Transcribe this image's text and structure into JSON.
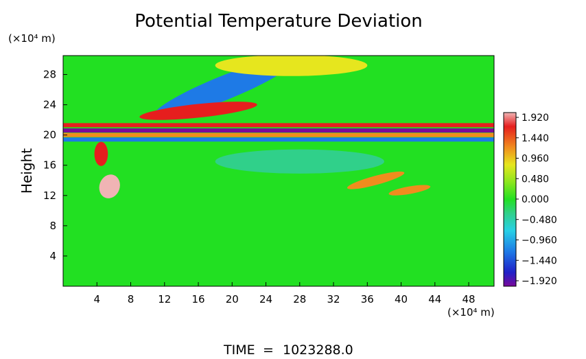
{
  "chart_data": {
    "type": "heatmap",
    "title": "Potential Temperature Deviation",
    "ylabel": "Height",
    "y_unit": "(×10⁴ m)",
    "x_unit": "(×10⁴ m)",
    "x_ticks": [
      4,
      8,
      12,
      16,
      20,
      24,
      28,
      32,
      36,
      40,
      44,
      48
    ],
    "y_ticks": [
      4,
      8,
      12,
      16,
      20,
      24,
      28
    ],
    "xlim": [
      0,
      51
    ],
    "ylim": [
      0,
      30.5
    ],
    "colorbar": {
      "ticks": [
        "1.920",
        "1.440",
        "0.960",
        "0.480",
        "0.000",
        "−0.480",
        "−0.960",
        "−1.440",
        "−1.920"
      ],
      "range": [
        -2.16,
        2.16
      ],
      "colors": [
        "#7a0a9a",
        "#2020c8",
        "#1e7ae6",
        "#28d0e6",
        "#30d08a",
        "#22e022",
        "#8ce61e",
        "#e6e61e",
        "#f08c1e",
        "#e61e1e",
        "#f0b4b4"
      ]
    },
    "features": [
      {
        "kind": "blob",
        "x": 19,
        "y": 26.2,
        "rx": 9,
        "ry": 1.6,
        "rot": -22,
        "value": -1.1
      },
      {
        "kind": "blob",
        "x": 16,
        "y": 23.2,
        "rx": 7,
        "ry": 0.9,
        "rot": -6,
        "value": 1.6
      },
      {
        "kind": "blob",
        "x": 27,
        "y": 29.2,
        "rx": 9,
        "ry": 1.4,
        "rot": 0,
        "value": 0.8
      },
      {
        "kind": "band",
        "y": 21.3,
        "value": 1.6
      },
      {
        "kind": "band",
        "y": 20.6,
        "value": -2.0
      },
      {
        "kind": "band",
        "y": 20.0,
        "value": 1.4
      },
      {
        "kind": "band",
        "y": 19.4,
        "value": -1.3
      },
      {
        "kind": "blob",
        "x": 5.5,
        "y": 13.2,
        "rx": 1.2,
        "ry": 1.6,
        "rot": 20,
        "value": 2.1
      },
      {
        "kind": "blob",
        "x": 4.5,
        "y": 17.5,
        "rx": 0.8,
        "ry": 1.6,
        "rot": 0,
        "value": 1.6
      },
      {
        "kind": "blob",
        "x": 37,
        "y": 14.0,
        "rx": 3.5,
        "ry": 0.6,
        "rot": -15,
        "value": 1.3
      },
      {
        "kind": "blob",
        "x": 41,
        "y": 12.7,
        "rx": 2.5,
        "ry": 0.5,
        "rot": -10,
        "value": 1.2
      },
      {
        "kind": "blob",
        "x": 28,
        "y": 16.5,
        "rx": 10,
        "ry": 1.6,
        "rot": 0,
        "value": -0.3
      }
    ]
  },
  "footer": {
    "time_label": "TIME",
    "time_equals": "=",
    "time_value": "1023288.0"
  }
}
